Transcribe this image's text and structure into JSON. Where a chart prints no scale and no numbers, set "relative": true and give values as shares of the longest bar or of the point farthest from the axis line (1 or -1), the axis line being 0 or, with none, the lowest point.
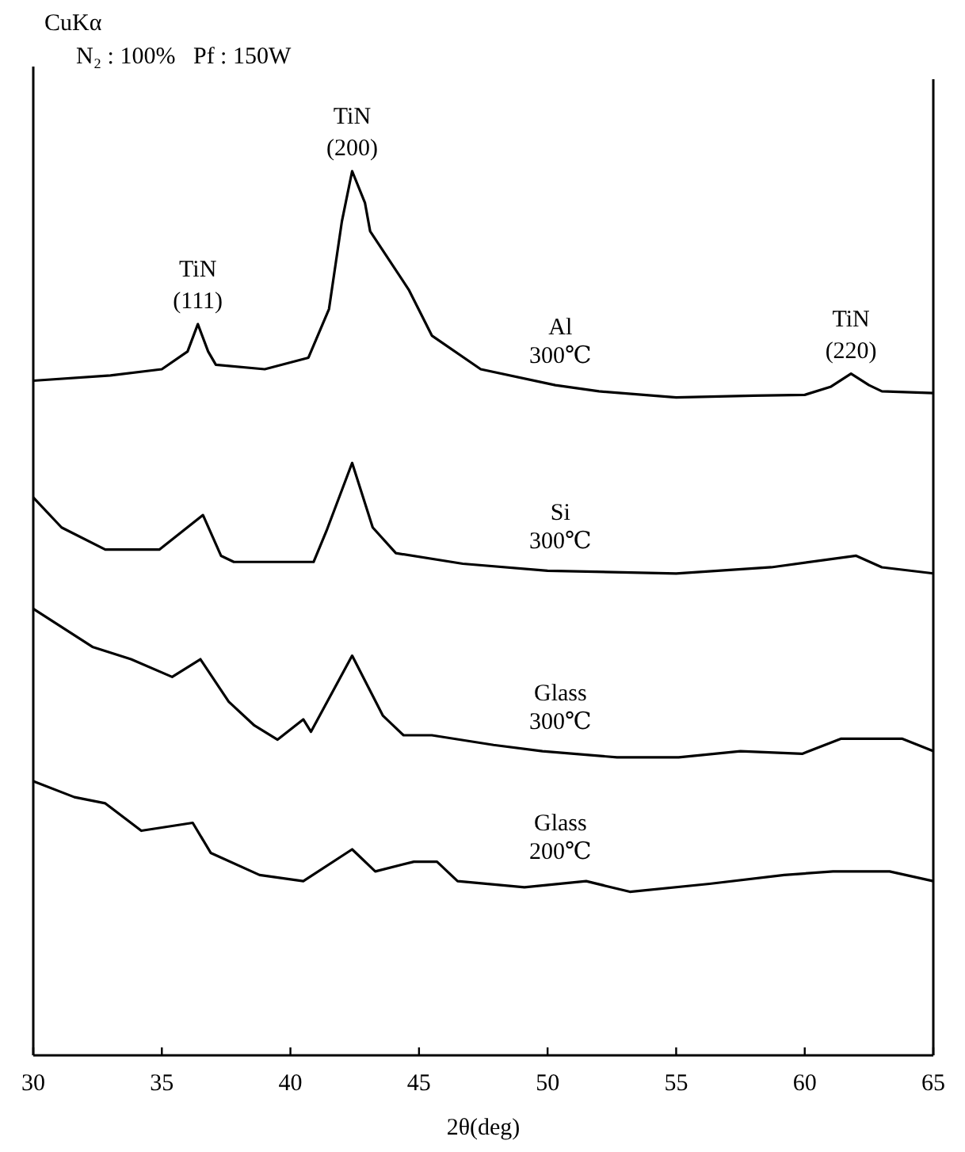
{
  "chart_data": {
    "type": "line",
    "title": "CuKα",
    "subtitle": "N₂ : 100%   Pf : 150W",
    "xlabel": "2θ(deg)",
    "xlim": [
      30,
      65
    ],
    "xticks": [
      30,
      35,
      40,
      45,
      50,
      55,
      60,
      65
    ],
    "relative": true,
    "marker": "none",
    "line_style": "solid",
    "annotations": [
      {
        "text": "TiN (111)",
        "x": 36.4,
        "y": 0.827
      },
      {
        "text": "TiN (200)",
        "x": 42.4,
        "y": 1
      },
      {
        "text": "TiN (220)",
        "x": 61.8,
        "y": 0.771
      }
    ],
    "series": [
      {
        "name": "Al 300℃",
        "color": "#000000",
        "x": [
          30,
          33,
          35,
          36,
          36.4,
          36.8,
          37.1,
          39,
          40.7,
          41.5,
          42,
          42.4,
          42.9,
          43.1,
          44.6,
          45.5,
          47.4,
          50.3,
          52,
          55,
          58,
          60,
          61,
          61.8,
          62.5,
          63,
          65
        ],
        "values": [
          0.763,
          0.769,
          0.776,
          0.796,
          0.827,
          0.796,
          0.781,
          0.776,
          0.789,
          0.844,
          0.943,
          1,
          0.964,
          0.932,
          0.866,
          0.814,
          0.776,
          0.758,
          0.751,
          0.744,
          0.746,
          0.747,
          0.756,
          0.771,
          0.758,
          0.751,
          0.749
        ]
      },
      {
        "name": "Si 300℃",
        "color": "#000000",
        "x": [
          30,
          31.1,
          32.8,
          34.9,
          36.6,
          37.3,
          37.8,
          40.9,
          41.4,
          42.4,
          43.2,
          44.1,
          46.7,
          50,
          55,
          58.7,
          62,
          63,
          65
        ],
        "values": [
          0.631,
          0.597,
          0.572,
          0.572,
          0.611,
          0.565,
          0.558,
          0.558,
          0.593,
          0.67,
          0.597,
          0.568,
          0.556,
          0.548,
          0.545,
          0.552,
          0.565,
          0.552,
          0.545
        ]
      },
      {
        "name": "Glass 300℃",
        "color": "#000000",
        "x": [
          30,
          32.3,
          33.8,
          35.4,
          36.5,
          37.6,
          38.6,
          39.5,
          40.5,
          40.8,
          42.4,
          43.6,
          44.4,
          45.5,
          47.9,
          49.8,
          52.7,
          55.1,
          57.5,
          59.9,
          61.4,
          63.8,
          65
        ],
        "values": [
          0.505,
          0.462,
          0.448,
          0.428,
          0.448,
          0.4,
          0.373,
          0.357,
          0.38,
          0.366,
          0.452,
          0.384,
          0.362,
          0.362,
          0.351,
          0.344,
          0.337,
          0.337,
          0.344,
          0.341,
          0.358,
          0.358,
          0.344
        ]
      },
      {
        "name": "Glass 200℃",
        "color": "#000000",
        "x": [
          30,
          31.6,
          32.8,
          34.2,
          36.2,
          36.9,
          38.8,
          40.5,
          42.4,
          43.3,
          44.8,
          45.7,
          46.5,
          49.1,
          51.5,
          53.2,
          56.3,
          59.2,
          61.1,
          63.3,
          65
        ],
        "values": [
          0.31,
          0.292,
          0.285,
          0.254,
          0.263,
          0.229,
          0.204,
          0.197,
          0.233,
          0.208,
          0.219,
          0.219,
          0.197,
          0.19,
          0.197,
          0.185,
          0.194,
          0.204,
          0.208,
          0.208,
          0.197
        ]
      }
    ]
  }
}
